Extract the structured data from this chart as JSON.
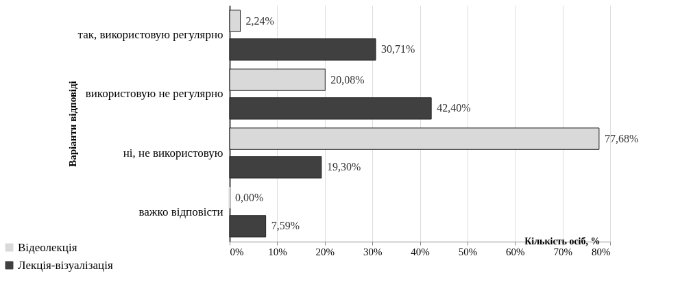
{
  "chart_data": {
    "type": "bar",
    "orientation": "horizontal",
    "ylabel": "Варіанти відповіді",
    "xlabel": "Кількість осіб, %",
    "categories": [
      "так, використовую регулярно",
      "використовую не регулярно",
      "ні, не використовую",
      "важко відповісти"
    ],
    "series": [
      {
        "name": "Відеолекція",
        "color": "#d9d9d9",
        "values": [
          2.24,
          20.08,
          77.68,
          0.0
        ],
        "value_labels": [
          "2,24%",
          "20,08%",
          "77,68%",
          "0,00%"
        ]
      },
      {
        "name": "Лекція-візуалізація",
        "color": "#404040",
        "values": [
          30.71,
          42.4,
          19.3,
          7.59
        ],
        "value_labels": [
          "30,71%",
          "42,40%",
          "19,30%",
          "7,59%"
        ]
      }
    ],
    "xlim": [
      0,
      80
    ],
    "xticks": [
      {
        "value": 0,
        "label": "0%"
      },
      {
        "value": 10,
        "label": "10%"
      },
      {
        "value": 20,
        "label": "20%"
      },
      {
        "value": 30,
        "label": "30%"
      },
      {
        "value": 40,
        "label": "40%"
      },
      {
        "value": 50,
        "label": "50%"
      },
      {
        "value": 60,
        "label": "60%"
      },
      {
        "value": 70,
        "label": "70%"
      },
      {
        "value": 80,
        "label": "80%"
      }
    ],
    "grid": "x",
    "legend": "bottom left"
  }
}
